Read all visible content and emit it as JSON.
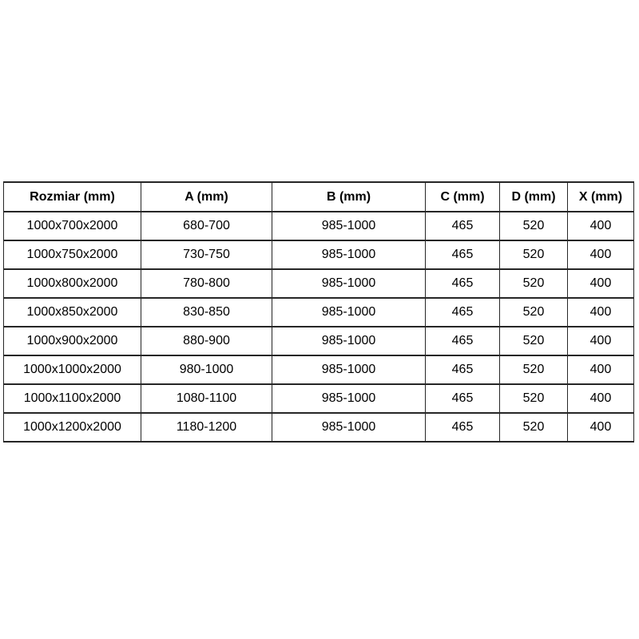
{
  "colors": {
    "background": "#ffffff",
    "table_border": "#262626",
    "text": "#000000"
  },
  "chart_data": {
    "type": "table",
    "title": "",
    "columns": [
      "Rozmiar (mm)",
      "A (mm)",
      "B (mm)",
      "C (mm)",
      "D (mm)",
      "X (mm)"
    ],
    "rows": [
      [
        "1000x700x2000",
        "680-700",
        "985-1000",
        "465",
        "520",
        "400"
      ],
      [
        "1000x750x2000",
        "730-750",
        "985-1000",
        "465",
        "520",
        "400"
      ],
      [
        "1000x800x2000",
        "780-800",
        "985-1000",
        "465",
        "520",
        "400"
      ],
      [
        "1000x850x2000",
        "830-850",
        "985-1000",
        "465",
        "520",
        "400"
      ],
      [
        "1000x900x2000",
        "880-900",
        "985-1000",
        "465",
        "520",
        "400"
      ],
      [
        "1000x1000x2000",
        "980-1000",
        "985-1000",
        "465",
        "520",
        "400"
      ],
      [
        "1000x1100x2000",
        "1080-1100",
        "985-1000",
        "465",
        "520",
        "400"
      ],
      [
        "1000x1200x2000",
        "1180-1200",
        "985-1000",
        "465",
        "520",
        "400"
      ]
    ]
  }
}
